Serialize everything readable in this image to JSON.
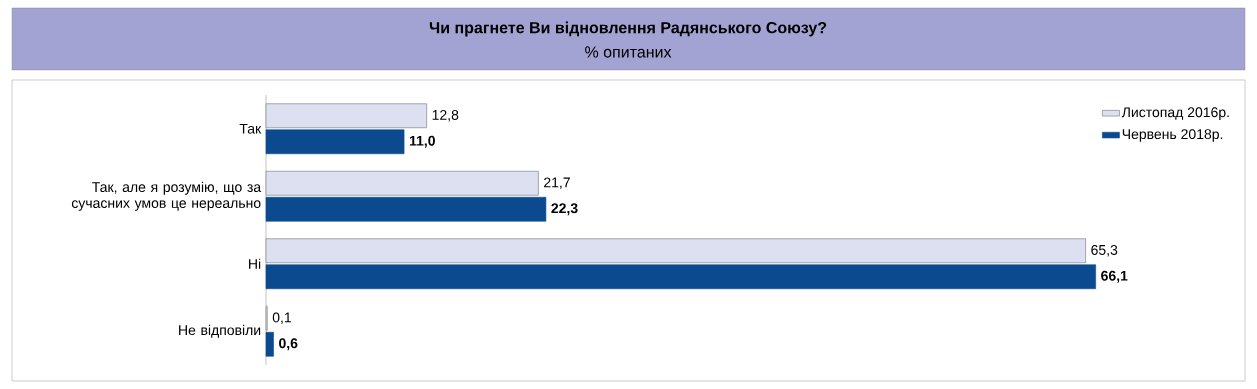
{
  "chart_data": {
    "type": "bar",
    "orientation": "horizontal",
    "title": "Чи прагнете Ви відновлення Радянського Союзу?",
    "subtitle": "% опитаних",
    "categories": [
      "Так",
      "Так, але я розумію, що за сучасних умов це нереально",
      "Ні",
      "Не відповіли"
    ],
    "legend": "top right",
    "series": [
      {
        "name": "Листопад 2016р.",
        "color": "#dde0f0",
        "values": [
          12.8,
          21.7,
          65.3,
          0.1
        ],
        "value_labels": [
          "12,8",
          "21,7",
          "65,3",
          "0,1"
        ]
      },
      {
        "name": "Червень 2018р.",
        "color": "#0b4a8f",
        "values": [
          11.0,
          22.3,
          66.1,
          0.6
        ],
        "value_labels": [
          "11,0",
          "22,3",
          "66,1",
          "0,6"
        ]
      }
    ]
  }
}
